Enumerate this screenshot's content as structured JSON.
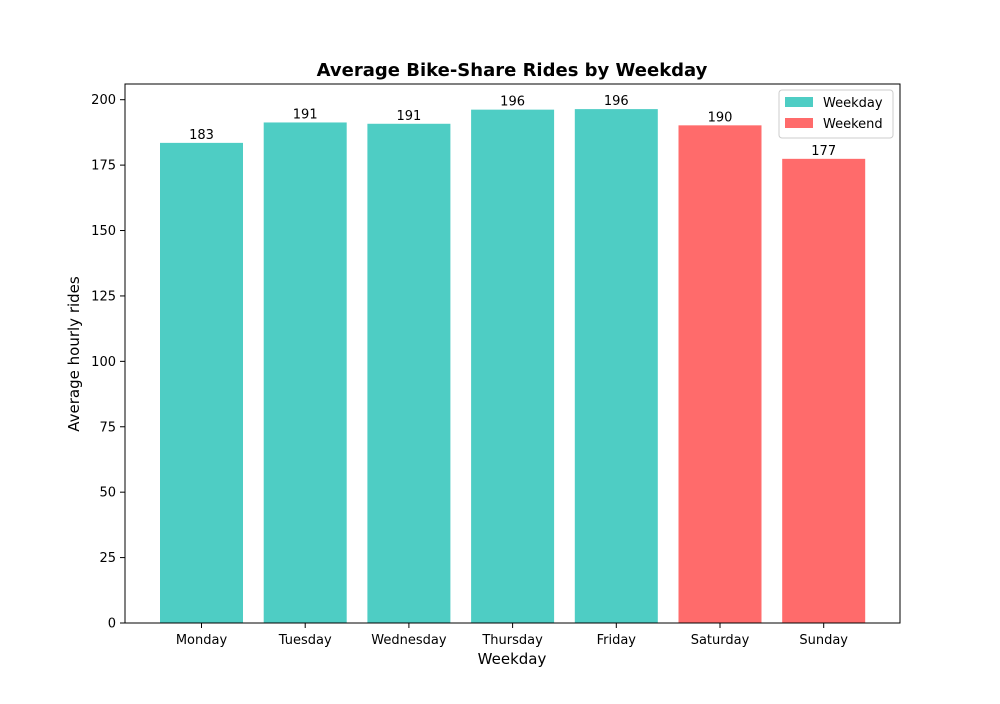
{
  "chart_data": {
    "type": "bar",
    "title": "Average Bike-Share Rides by Weekday",
    "xlabel": "Weekday",
    "ylabel": "Average hourly rides",
    "categories": [
      "Monday",
      "Tuesday",
      "Wednesday",
      "Thursday",
      "Friday",
      "Saturday",
      "Sunday"
    ],
    "values": [
      183.5,
      191.3,
      190.8,
      196.2,
      196.4,
      190.2,
      177.4
    ],
    "value_labels": [
      "183",
      "191",
      "191",
      "196",
      "196",
      "190",
      "177"
    ],
    "groups": [
      "Weekday",
      "Weekday",
      "Weekday",
      "Weekday",
      "Weekday",
      "Weekend",
      "Weekend"
    ],
    "ylim": [
      0,
      206
    ],
    "yticks": [
      0,
      25,
      50,
      75,
      100,
      125,
      150,
      175,
      200
    ],
    "ytick_labels": [
      "0",
      "25",
      "50",
      "75",
      "100",
      "125",
      "150",
      "175",
      "200"
    ],
    "grid": false,
    "legend": {
      "placement": "top-right",
      "entries": [
        {
          "label": "Weekday",
          "color": "#4ECDC4"
        },
        {
          "label": "Weekend",
          "color": "#FF6B6B"
        }
      ]
    },
    "colors": {
      "Weekday": "#4ECDC4",
      "Weekend": "#FF6B6B"
    }
  }
}
